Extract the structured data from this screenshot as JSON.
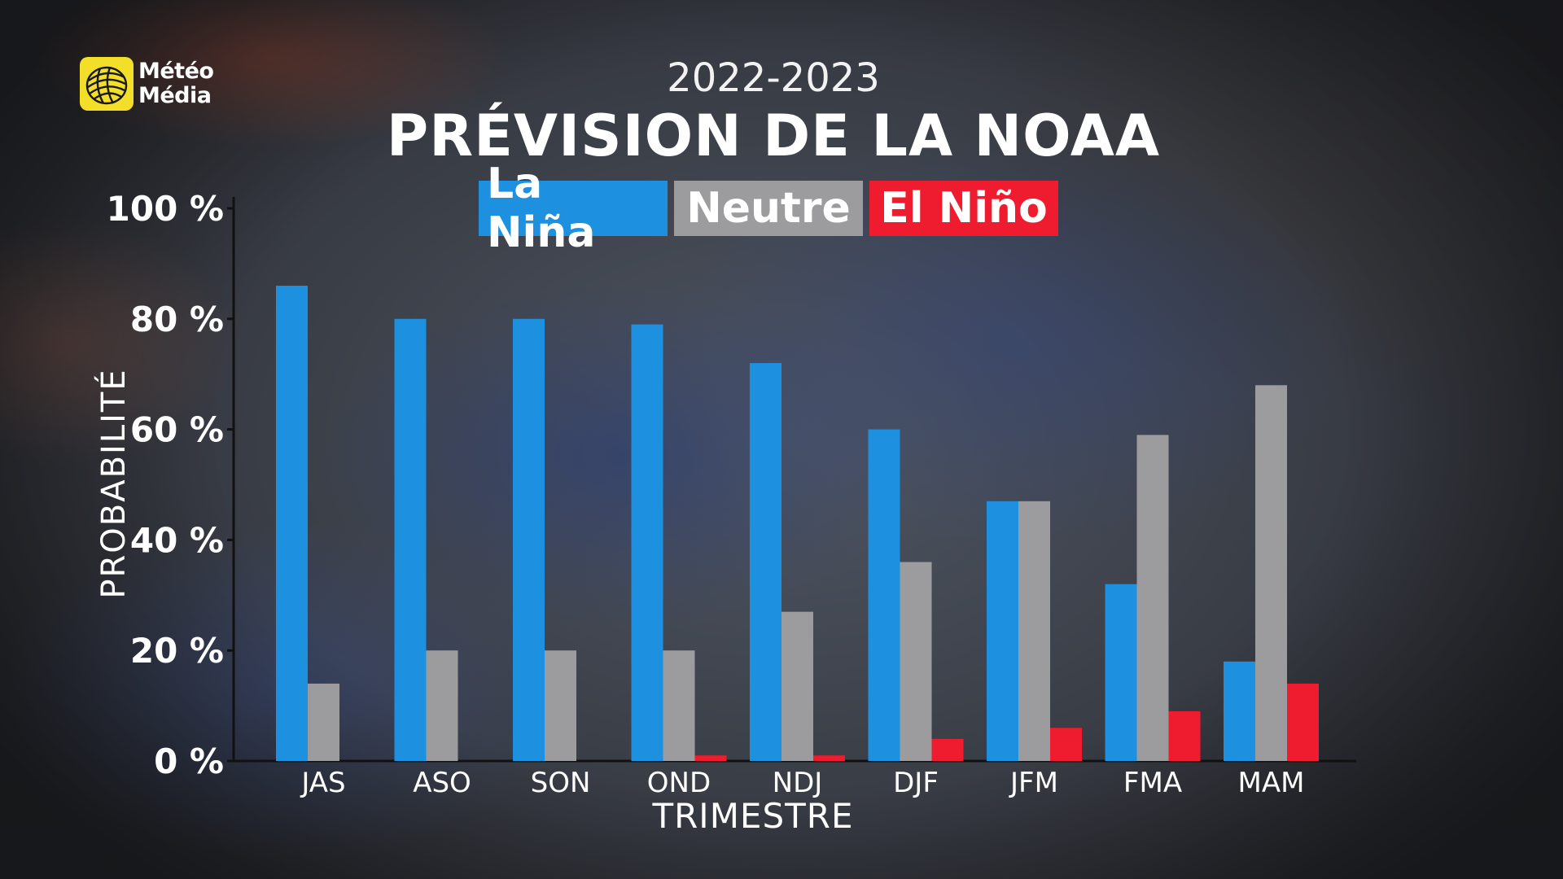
{
  "logo": {
    "line1": "Météo",
    "line2": "Média"
  },
  "colors": {
    "la_nina": "#1e90e0",
    "neutre": "#9c9c9e",
    "el_nino": "#ee1c2e"
  },
  "chart_data": {
    "type": "bar",
    "subtitle": "2022-2023",
    "title": "PRÉVISION DE LA NOAA",
    "xlabel": "TRIMESTRE",
    "ylabel": "PROBABILITÉ",
    "ylim": [
      0,
      100
    ],
    "yticks": [
      "0 %",
      "20 %",
      "40 %",
      "60 %",
      "80 %",
      "100 %"
    ],
    "legend_placement": "top-center",
    "grid": false,
    "categories": [
      "JAS",
      "ASO",
      "SON",
      "OND",
      "NDJ",
      "DJF",
      "JFM",
      "FMA",
      "MAM"
    ],
    "series": [
      {
        "name": "La Niña",
        "color": "#1e90e0",
        "values": [
          86,
          80,
          80,
          79,
          72,
          60,
          47,
          32,
          18
        ]
      },
      {
        "name": "Neutre",
        "color": "#9c9c9e",
        "values": [
          14,
          20,
          20,
          20,
          27,
          36,
          47,
          59,
          68
        ]
      },
      {
        "name": "El Niño",
        "color": "#ee1c2e",
        "values": [
          0,
          0,
          0,
          1,
          1,
          4,
          6,
          9,
          14
        ]
      }
    ]
  }
}
